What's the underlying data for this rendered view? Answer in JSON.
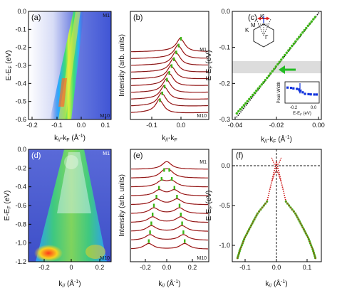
{
  "figure": {
    "panels": {
      "a": {
        "label": "(a)",
        "corner_top": "M1",
        "corner_bottom": "M10",
        "xlabel_main": "k",
        "xlabel_sub1": "//",
        "xlabel_mid": "-k",
        "xlabel_sub2": "F",
        "xlabel_unit": " (Å",
        "xlabel_sup": "-1",
        "xlabel_close": ")",
        "ylabel": "E-E",
        "ylabel_sub": "F",
        "ylabel_unit": " (eV)",
        "xticks": [
          "-0.2",
          "-0.1",
          "0.0",
          "0.1"
        ],
        "yticks": [
          "0.0",
          "-0.1",
          "-0.2",
          "-0.3",
          "-0.4",
          "-0.5",
          "-0.6"
        ]
      },
      "b": {
        "label": "(b)",
        "corner_top": "M1",
        "corner_bottom": "M10",
        "ylabel": "Intensity (arb. units)",
        "xlabel_main": "k",
        "xlabel_sub1": "//",
        "xlabel_mid": "-k",
        "xlabel_sub2": "F",
        "xticks": [
          "-0.1",
          "0.0"
        ]
      },
      "c": {
        "label": "(c)",
        "bz_labels": [
          "K",
          "M",
          "K",
          "Γ"
        ],
        "ylabel": "E-E",
        "ylabel_sub": "F",
        "ylabel_unit": " (eV)",
        "xlabel_main": "k",
        "xlabel_sub1": "//",
        "xlabel_mid": "-k",
        "xlabel_sub2": "F",
        "xlabel_unit": " (Å",
        "xlabel_sup": "-1",
        "xlabel_close": ")",
        "xticks": [
          "-0.04",
          "-0.02",
          "0.00"
        ],
        "yticks": [
          "0.0",
          "-0.1",
          "-0.2",
          "-0.3"
        ],
        "inset_ylabel": "Peak Width",
        "inset_xlabel": "E-E",
        "inset_xlabel_sub": "F",
        "inset_xlabel_unit": " (eV)",
        "inset_xticks": [
          "-0.2",
          "0.0"
        ]
      },
      "d": {
        "label": "(d)",
        "corner_top": "M1",
        "corner_bottom": "M10",
        "ylabel": "E-E",
        "ylabel_sub": "F",
        "ylabel_unit": " (eV)",
        "xlabel_main": "k",
        "xlabel_sub1": "//",
        "xlabel_unit": " (Å",
        "xlabel_sup": "-1",
        "xlabel_close": ")",
        "xticks": [
          "-0.2",
          "0",
          "0.2"
        ],
        "yticks": [
          "0.0",
          "-0.2",
          "-0.4",
          "-0.6",
          "-0.8",
          "-1.0",
          "-1.2"
        ]
      },
      "e": {
        "label": "(e)",
        "corner_top": "M1",
        "corner_bottom": "M10",
        "ylabel": "Intensity (arb. units)",
        "xlabel_main": "k",
        "xlabel_sub1": "//",
        "xlabel_unit": " (Å",
        "xlabel_sup": "-1",
        "xlabel_close": ")",
        "xticks": [
          "-0.2",
          "0.0",
          "0.2"
        ]
      },
      "f": {
        "label": "(f)",
        "ylabel": "E-E",
        "ylabel_sub": "F",
        "ylabel_unit": " (eV)",
        "xlabel_main": "k",
        "xlabel_sub1": "//",
        "xlabel_unit": " (Å",
        "xlabel_sup": "-1",
        "xlabel_close": ")",
        "xticks": [
          "-0.1",
          "0.0",
          "0.1"
        ],
        "yticks": [
          "0.0",
          "-0.5",
          "-1.0"
        ]
      }
    },
    "colors": {
      "data_green": "#3fb618",
      "fit_red": "#cc1111",
      "dots_black": "#111111",
      "arrow_green": "#22bb22",
      "inset_blue": "#1133dd",
      "band_gray": "#dcdcdc"
    }
  },
  "chart_data": [
    {
      "panel": "a",
      "type": "heatmap",
      "xlim": [
        -0.2,
        0.15
      ],
      "ylim": [
        -0.6,
        0.0
      ],
      "band_center": [
        [
          0.0,
          0.0
        ],
        [
          -0.6,
          -0.08
        ]
      ]
    },
    {
      "panel": "b",
      "type": "line",
      "curves": 10,
      "peak_k": [
        0.0,
        -0.008,
        -0.016,
        -0.024,
        -0.032,
        -0.04,
        -0.048,
        -0.056,
        -0.064,
        -0.072
      ]
    },
    {
      "panel": "c",
      "type": "scatter",
      "xlim": [
        -0.04,
        0.0
      ],
      "ylim": [
        -0.3,
        0.0
      ],
      "x": [
        -0.038,
        -0.034,
        -0.03,
        -0.026,
        -0.022,
        -0.018,
        -0.014,
        -0.01,
        -0.006,
        -0.002
      ],
      "y": [
        -0.283,
        -0.255,
        -0.226,
        -0.197,
        -0.166,
        -0.134,
        -0.102,
        -0.071,
        -0.04,
        -0.01
      ],
      "kink_band": [
        -0.17,
        -0.135
      ],
      "inset": {
        "x": [
          -0.25,
          -0.22,
          -0.2,
          -0.17,
          -0.15,
          -0.12,
          -0.1,
          -0.07,
          -0.05,
          -0.02,
          0.0
        ],
        "y": [
          0.9,
          0.88,
          0.85,
          0.82,
          0.78,
          0.6,
          0.5,
          0.48,
          0.47,
          0.46,
          0.46
        ]
      }
    },
    {
      "panel": "d",
      "type": "heatmap",
      "xlim": [
        -0.28,
        0.28
      ],
      "ylim": [
        -1.2,
        0.0
      ]
    },
    {
      "panel": "e",
      "type": "line",
      "curves": 10,
      "peak_k_left": [
        0.0,
        -0.02,
        -0.04,
        -0.06,
        -0.08,
        -0.1,
        -0.11,
        -0.12,
        -0.13,
        -0.14
      ],
      "peak_k_right": [
        0.0,
        0.02,
        0.04,
        0.06,
        0.08,
        0.1,
        0.11,
        0.12,
        0.13,
        0.14
      ]
    },
    {
      "panel": "f",
      "type": "line",
      "xlim": [
        -0.14,
        0.14
      ],
      "ylim": [
        -1.2,
        0.1
      ],
      "left_branch_k": [
        -0.03,
        -0.06,
        -0.08,
        -0.1,
        -0.115,
        -0.125
      ],
      "left_branch_E": [
        -0.45,
        -0.6,
        -0.75,
        -0.9,
        -1.05,
        -1.18
      ]
    }
  ]
}
